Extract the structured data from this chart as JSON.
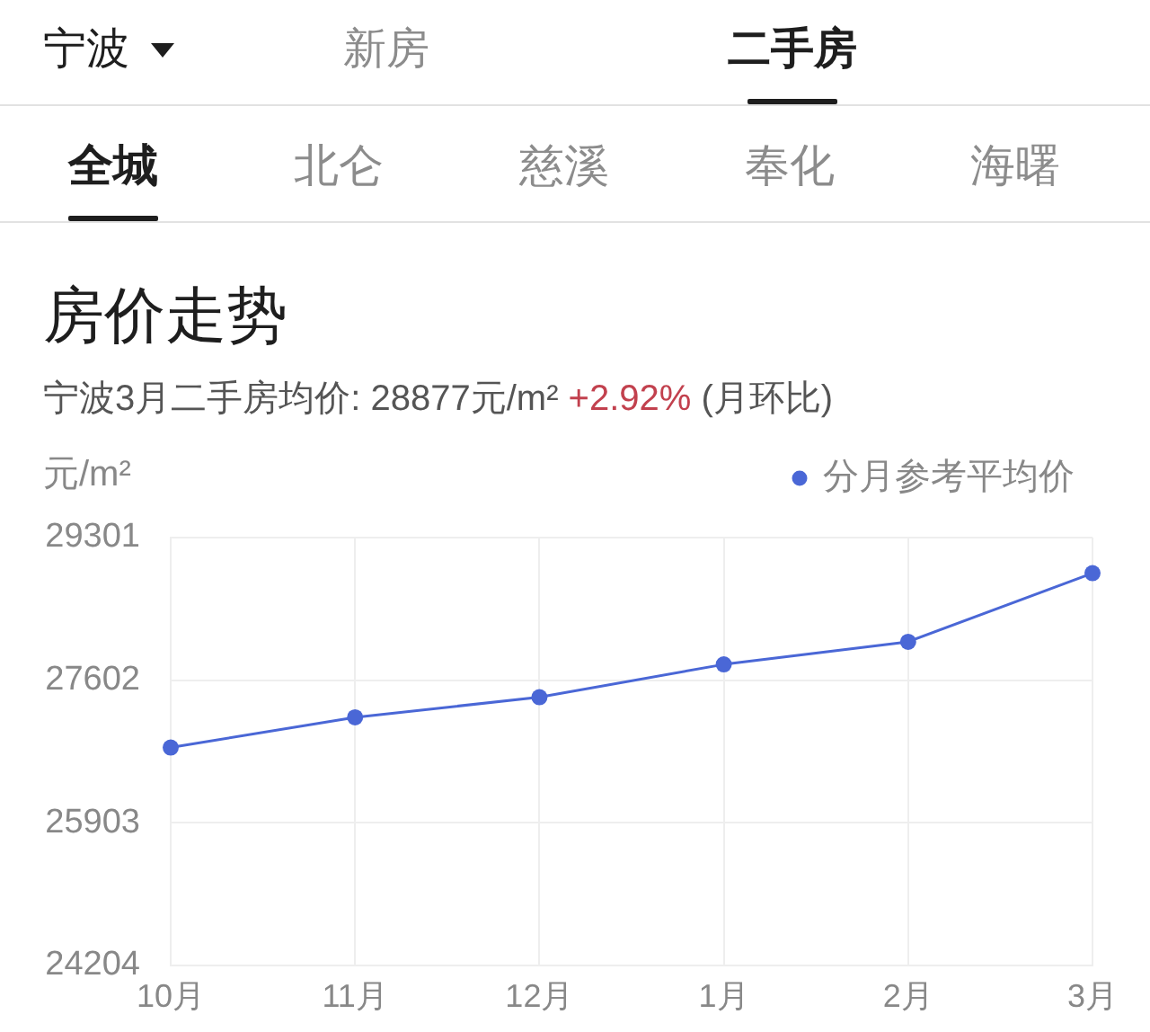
{
  "chart_data": [
    {
      "type": "other",
      "annotations": [
        "宁波",
        "新房",
        "二手房"
      ]
    },
    {
      "type": "other",
      "annotations": [
        "全城",
        "北仑",
        "慈溪",
        "奉化",
        "海曙"
      ]
    },
    {
      "type": "line",
      "title": "房价走势",
      "subtitle": "宁波3月二手房均价: 28877元/m² +2.92% (月环比)",
      "ylabel": "元/m²",
      "categories": [
        "10月",
        "11月",
        "12月",
        "1月",
        "2月",
        "3月"
      ],
      "series": [
        {
          "name": "分月参考平均价",
          "color": "#4a67d6",
          "values": [
            26800,
            27160,
            27400,
            27790,
            28060,
            28877
          ]
        }
      ],
      "ylim": [
        24204,
        29301
      ],
      "yticks": [
        24204,
        25903,
        27602,
        29301
      ],
      "grid": true,
      "legend": "top right",
      "marker": "circle",
      "line_style": "solid"
    }
  ]
}
